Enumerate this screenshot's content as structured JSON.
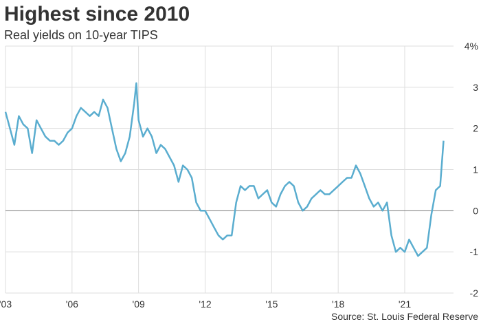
{
  "chart_data": {
    "type": "line",
    "title": "Highest since 2010",
    "subtitle": "Real yields on 10-year TIPS",
    "source": "Source: St. Louis Federal Reserve",
    "x": [
      2003.0,
      2003.2,
      2003.4,
      2003.6,
      2003.8,
      2004.0,
      2004.2,
      2004.4,
      2004.6,
      2004.8,
      2005.0,
      2005.2,
      2005.4,
      2005.6,
      2005.8,
      2006.0,
      2006.2,
      2006.4,
      2006.6,
      2006.8,
      2007.0,
      2007.2,
      2007.4,
      2007.6,
      2007.8,
      2008.0,
      2008.2,
      2008.4,
      2008.6,
      2008.8,
      2008.9,
      2009.0,
      2009.2,
      2009.4,
      2009.6,
      2009.8,
      2010.0,
      2010.2,
      2010.4,
      2010.6,
      2010.8,
      2011.0,
      2011.2,
      2011.4,
      2011.6,
      2011.8,
      2012.0,
      2012.2,
      2012.4,
      2012.6,
      2012.8,
      2013.0,
      2013.2,
      2013.4,
      2013.6,
      2013.8,
      2014.0,
      2014.2,
      2014.4,
      2014.6,
      2014.8,
      2015.0,
      2015.2,
      2015.4,
      2015.6,
      2015.8,
      2016.0,
      2016.2,
      2016.4,
      2016.6,
      2016.8,
      2017.0,
      2017.2,
      2017.4,
      2017.6,
      2017.8,
      2018.0,
      2018.2,
      2018.4,
      2018.6,
      2018.8,
      2019.0,
      2019.2,
      2019.4,
      2019.6,
      2019.8,
      2020.0,
      2020.2,
      2020.4,
      2020.6,
      2020.8,
      2021.0,
      2021.2,
      2021.4,
      2021.6,
      2021.8,
      2022.0,
      2022.2,
      2022.4,
      2022.6,
      2022.75
    ],
    "series": [
      {
        "name": "Real yields on 10-year TIPS",
        "color": "#5aadcf",
        "values": [
          2.4,
          2.0,
          1.6,
          2.3,
          2.1,
          2.0,
          1.4,
          2.2,
          2.0,
          1.8,
          1.7,
          1.7,
          1.6,
          1.7,
          1.9,
          2.0,
          2.3,
          2.5,
          2.4,
          2.3,
          2.4,
          2.3,
          2.7,
          2.5,
          2.0,
          1.5,
          1.2,
          1.4,
          1.8,
          2.6,
          3.1,
          2.2,
          1.8,
          2.0,
          1.8,
          1.4,
          1.6,
          1.5,
          1.3,
          1.1,
          0.7,
          1.1,
          1.0,
          0.8,
          0.2,
          0.0,
          0.0,
          -0.2,
          -0.4,
          -0.6,
          -0.7,
          -0.6,
          -0.6,
          0.2,
          0.6,
          0.5,
          0.6,
          0.6,
          0.3,
          0.4,
          0.5,
          0.2,
          0.1,
          0.4,
          0.6,
          0.7,
          0.6,
          0.2,
          0.0,
          0.1,
          0.3,
          0.4,
          0.5,
          0.4,
          0.4,
          0.5,
          0.6,
          0.7,
          0.8,
          0.8,
          1.1,
          0.9,
          0.6,
          0.3,
          0.1,
          0.2,
          0.0,
          0.2,
          -0.6,
          -1.0,
          -0.9,
          -1.0,
          -0.7,
          -0.9,
          -1.1,
          -1.0,
          -0.9,
          -0.1,
          0.5,
          0.6,
          1.7
        ]
      }
    ],
    "xlim": [
      2003,
      2023.2
    ],
    "xticks": [
      {
        "value": 2003,
        "label": "'03"
      },
      {
        "value": 2006,
        "label": "'06"
      },
      {
        "value": 2009,
        "label": "'09"
      },
      {
        "value": 2012,
        "label": "'12"
      },
      {
        "value": 2015,
        "label": "'15"
      },
      {
        "value": 2018,
        "label": "'18"
      },
      {
        "value": 2021,
        "label": "'21"
      }
    ],
    "ylim": [
      -2,
      4
    ],
    "yticks": [
      {
        "value": 4,
        "label": "4%"
      },
      3,
      2,
      1,
      0,
      -1,
      -2
    ],
    "grid": true
  }
}
